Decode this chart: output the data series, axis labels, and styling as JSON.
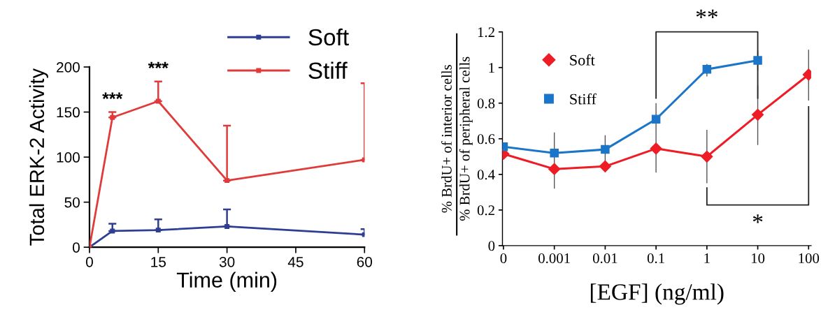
{
  "chart_data": [
    {
      "type": "line",
      "xlabel": "Time (min)",
      "ylabel": "Total ERK-2 Activity",
      "x": [
        0,
        5,
        15,
        30,
        60
      ],
      "xlim": [
        0,
        60
      ],
      "xticks": [
        0,
        15,
        30,
        45,
        60
      ],
      "ylim": [
        0,
        200
      ],
      "yticks": [
        0,
        50,
        100,
        150,
        200
      ],
      "grid": false,
      "legend": "top right",
      "marker": "square",
      "line_style": "solid",
      "series": [
        {
          "name": "Soft",
          "color": "#2e3f93",
          "values": [
            0,
            18,
            19,
            23,
            14
          ],
          "errors": [
            null,
            [
              18,
              26
            ],
            [
              19,
              31
            ],
            [
              23,
              42
            ],
            [
              14,
              20
            ]
          ]
        },
        {
          "name": "Stiff",
          "color": "#e03a3a",
          "values": [
            0,
            144,
            162,
            74,
            97
          ],
          "errors": [
            null,
            [
              144,
              150
            ],
            [
              162,
              184
            ],
            [
              74,
              135
            ],
            [
              97,
              182
            ]
          ]
        }
      ],
      "annotations": [
        {
          "text": "***",
          "x": 5,
          "y": 150
        },
        {
          "text": "***",
          "x": 15,
          "y": 184
        }
      ]
    },
    {
      "type": "line",
      "xlabel": "[EGF] (ng/ml)",
      "ylabel": "% BrdU+ of interior cells\n% BrdU+ of peripheral cells",
      "categories": [
        "0",
        "0.001",
        "0.01",
        "0.1",
        "1",
        "10",
        "100"
      ],
      "ylim": [
        0,
        1.2
      ],
      "yticks": [
        0,
        0.2,
        0.4,
        0.6,
        0.8,
        1,
        1.2
      ],
      "grid": false,
      "legend": "top left",
      "line_style": "solid",
      "series": [
        {
          "name": "Soft",
          "color": "#ee1c25",
          "marker": "diamond",
          "values": [
            0.515,
            0.43,
            0.445,
            0.545,
            0.5,
            0.735,
            0.96
          ],
          "errors": [
            null,
            [
              0.32,
              0.635
            ],
            null,
            [
              0.41,
              0.8
            ],
            [
              0.35,
              0.65
            ],
            [
              0.565,
              0.9
            ],
            [
              0.815,
              1.1
            ]
          ]
        },
        {
          "name": "Stiff",
          "color": "#1b75c8",
          "marker": "square",
          "values": [
            0.555,
            0.52,
            0.54,
            0.71,
            0.99,
            1.04,
            null
          ],
          "errors": [
            null,
            null,
            [
              0.46,
              0.62
            ],
            null,
            [
              0.95,
              1.02
            ],
            [
              0.985,
              1.095
            ],
            null
          ]
        }
      ],
      "annotations": [
        "**",
        "*"
      ]
    }
  ]
}
